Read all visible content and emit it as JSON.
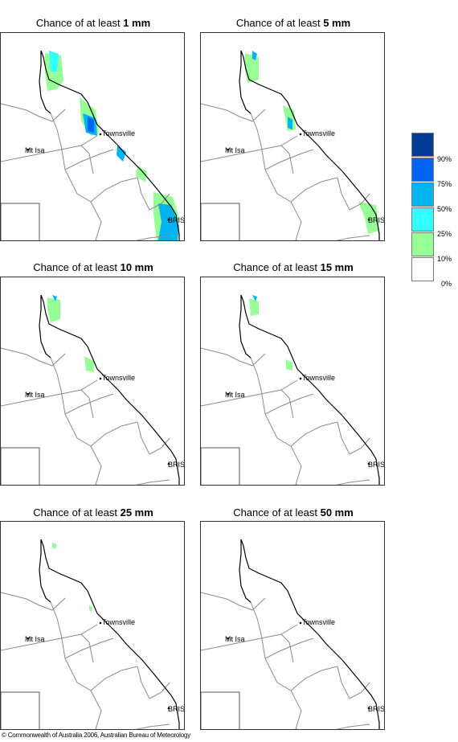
{
  "panels": [
    {
      "title_prefix": "Chance of at least ",
      "threshold": "1 mm",
      "level": 1
    },
    {
      "title_prefix": "Chance of at least ",
      "threshold": "5 mm",
      "level": 2
    },
    {
      "title_prefix": "Chance of at least ",
      "threshold": "10 mm",
      "level": 3
    },
    {
      "title_prefix": "Chance of at least ",
      "threshold": "15 mm",
      "level": 4
    },
    {
      "title_prefix": "Chance of at least ",
      "threshold": "25 mm",
      "level": 5
    },
    {
      "title_prefix": "Chance of at least ",
      "threshold": "50 mm",
      "level": 6
    }
  ],
  "places": {
    "townsville": "Townsville",
    "mt_isa": "Mt Isa",
    "bris": "BRIS"
  },
  "legend": {
    "ticks": [
      "90%",
      "75%",
      "50%",
      "25%",
      "10%",
      "0%"
    ],
    "colors": [
      "#003c96",
      "#0064f0",
      "#00b4f0",
      "#32ffff",
      "#96ff96",
      "#ffffff"
    ]
  },
  "colors": {
    "land_border": "#8a8a8a",
    "coast": "#000000",
    "band_10_25": "#96ff96",
    "band_25_50": "#32ffff",
    "band_50_75": "#00b4f0",
    "band_75_90": "#0064f0",
    "band_90_100": "#003c96"
  },
  "copyright": "© Commonwealth of Australia 2006, Australian Bureau of Meteorology"
}
